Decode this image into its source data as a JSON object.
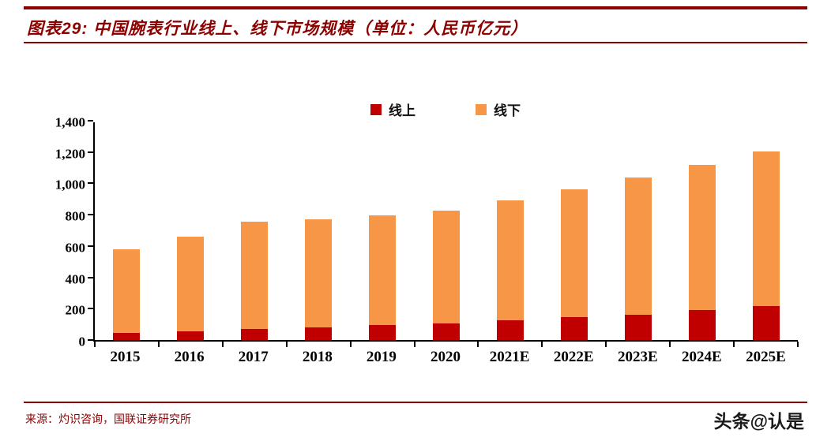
{
  "header": {
    "title": "图表29:  中国腕表行业线上、线下市场规模（单位：人民币亿元）"
  },
  "chart_data": {
    "type": "bar",
    "stacked": true,
    "title": "中国腕表行业线上、线下市场规模（单位：人民币亿元）",
    "categories": [
      "2015",
      "2016",
      "2017",
      "2018",
      "2019",
      "2020",
      "2021E",
      "2022E",
      "2023E",
      "2024E",
      "2025E"
    ],
    "series": [
      {
        "name": "线上",
        "color": "#c00000",
        "values": [
          45,
          55,
          70,
          80,
          95,
          105,
          125,
          145,
          160,
          190,
          215
        ]
      },
      {
        "name": "线下",
        "color": "#f79646",
        "values": [
          535,
          605,
          685,
          690,
          700,
          720,
          765,
          815,
          875,
          930,
          990
        ]
      }
    ],
    "totals": [
      580,
      660,
      755,
      770,
      795,
      825,
      890,
      960,
      1035,
      1120,
      1205
    ],
    "xlabel": "",
    "ylabel": "",
    "ylim": [
      0,
      1400
    ],
    "ytick_step": 200,
    "legend_position": "top",
    "grid": false
  },
  "footer": {
    "source": "来源：灼识咨询，国联证券研究所",
    "watermark": "头条@认是"
  }
}
